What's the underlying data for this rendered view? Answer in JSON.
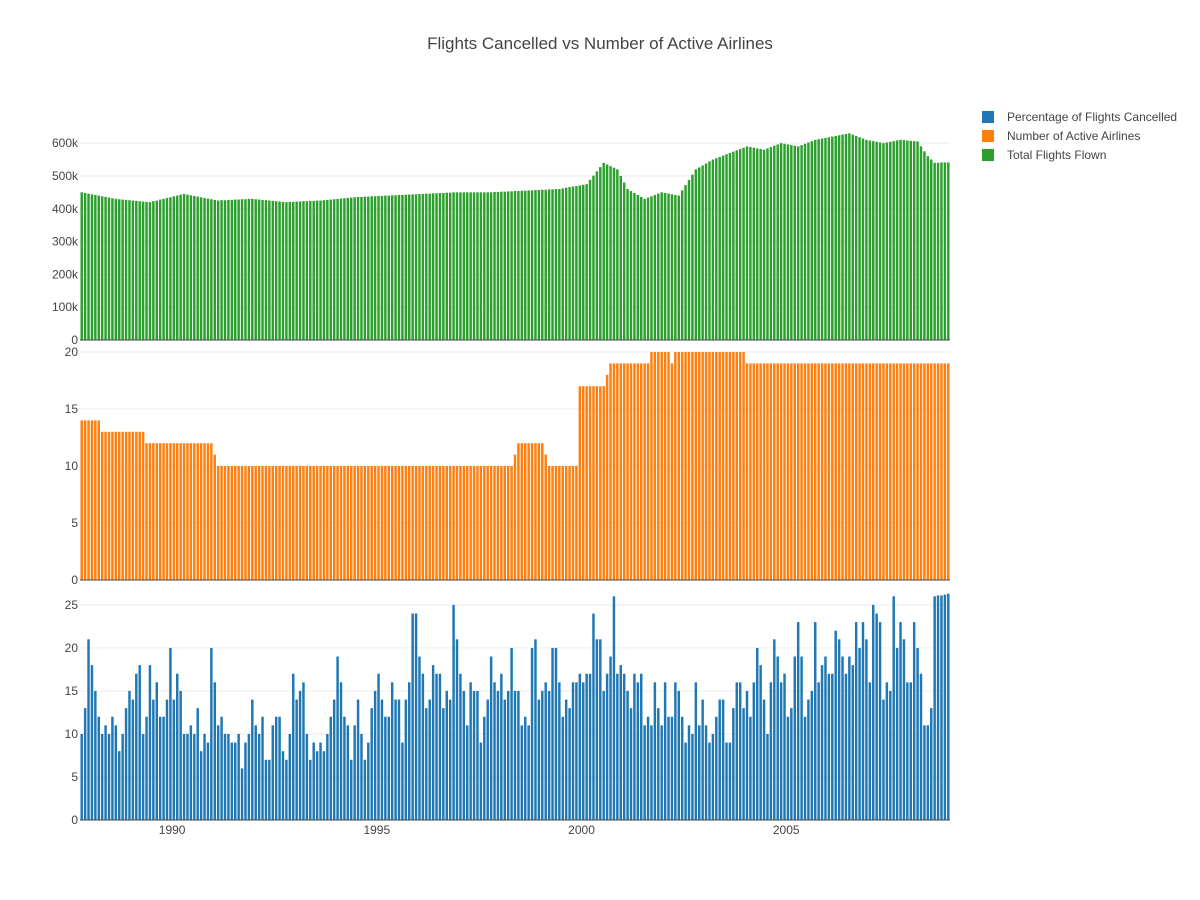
{
  "chart_data": {
    "type": "bar",
    "title": "Flights Cancelled vs Number of Active Airlines",
    "xlabel": "",
    "x_start": "1987-10",
    "x_end": "2008-12",
    "x_frequency": "monthly",
    "x_ticks": [
      "1990",
      "1995",
      "2000",
      "2005"
    ],
    "legend_position": "top-right",
    "grid": true,
    "series": [
      {
        "name": "Percentage of Flights Cancelled",
        "color": "#1f77b4",
        "ylim": [
          0,
          26.5
        ],
        "yticks": [
          "0",
          "5",
          "10",
          "15",
          "20",
          "25"
        ],
        "anchors": [
          [
            0,
            10
          ],
          [
            1,
            13
          ],
          [
            2,
            21
          ],
          [
            3,
            18
          ],
          [
            4,
            15
          ],
          [
            5,
            12
          ],
          [
            6,
            10
          ],
          [
            7,
            11
          ],
          [
            8,
            10
          ],
          [
            9,
            12
          ],
          [
            10,
            11
          ],
          [
            11,
            8
          ],
          [
            12,
            10
          ],
          [
            13,
            13
          ],
          [
            14,
            15
          ],
          [
            15,
            14
          ],
          [
            16,
            17
          ],
          [
            17,
            18
          ],
          [
            18,
            10
          ],
          [
            19,
            12
          ],
          [
            20,
            18
          ],
          [
            21,
            14
          ],
          [
            22,
            16
          ],
          [
            23,
            12
          ],
          [
            24,
            12
          ],
          [
            25,
            14
          ],
          [
            26,
            20
          ],
          [
            27,
            14
          ],
          [
            28,
            17
          ],
          [
            29,
            15
          ],
          [
            30,
            10
          ],
          [
            31,
            10
          ],
          [
            32,
            11
          ],
          [
            33,
            10
          ],
          [
            34,
            13
          ],
          [
            35,
            8
          ],
          [
            36,
            10
          ],
          [
            37,
            9
          ],
          [
            38,
            20
          ],
          [
            39,
            16
          ],
          [
            40,
            11
          ],
          [
            41,
            12
          ],
          [
            42,
            10
          ],
          [
            43,
            10
          ],
          [
            44,
            9
          ],
          [
            45,
            9
          ],
          [
            46,
            10
          ],
          [
            47,
            6
          ],
          [
            48,
            9
          ],
          [
            49,
            10
          ],
          [
            50,
            14
          ],
          [
            51,
            11
          ],
          [
            52,
            10
          ],
          [
            53,
            12
          ],
          [
            54,
            7
          ],
          [
            55,
            7
          ],
          [
            56,
            11
          ],
          [
            57,
            12
          ],
          [
            58,
            12
          ],
          [
            59,
            8
          ],
          [
            60,
            7
          ],
          [
            61,
            10
          ],
          [
            62,
            17
          ],
          [
            63,
            14
          ],
          [
            64,
            15
          ],
          [
            65,
            16
          ],
          [
            66,
            10
          ],
          [
            67,
            7
          ],
          [
            68,
            9
          ],
          [
            69,
            8
          ],
          [
            70,
            9
          ],
          [
            71,
            8
          ],
          [
            72,
            10
          ],
          [
            73,
            12
          ],
          [
            74,
            14
          ],
          [
            75,
            19
          ],
          [
            76,
            16
          ],
          [
            77,
            12
          ],
          [
            78,
            11
          ],
          [
            79,
            7
          ],
          [
            80,
            11
          ],
          [
            81,
            14
          ],
          [
            82,
            10
          ],
          [
            83,
            7
          ],
          [
            84,
            9
          ],
          [
            85,
            13
          ],
          [
            86,
            15
          ],
          [
            87,
            17
          ],
          [
            88,
            14
          ],
          [
            89,
            12
          ],
          [
            90,
            12
          ],
          [
            91,
            16
          ],
          [
            92,
            14
          ],
          [
            93,
            14
          ],
          [
            94,
            9
          ],
          [
            95,
            14
          ],
          [
            96,
            16
          ],
          [
            97,
            24
          ],
          [
            98,
            24
          ],
          [
            99,
            19
          ],
          [
            100,
            17
          ],
          [
            101,
            13
          ],
          [
            102,
            14
          ],
          [
            103,
            18
          ],
          [
            104,
            17
          ],
          [
            105,
            17
          ],
          [
            106,
            13
          ],
          [
            107,
            15
          ],
          [
            108,
            14
          ],
          [
            109,
            25
          ],
          [
            110,
            21
          ],
          [
            111,
            17
          ],
          [
            112,
            15
          ],
          [
            113,
            11
          ],
          [
            114,
            16
          ],
          [
            115,
            15
          ],
          [
            116,
            15
          ],
          [
            117,
            9
          ],
          [
            118,
            12
          ],
          [
            119,
            14
          ],
          [
            120,
            19
          ],
          [
            121,
            16
          ],
          [
            122,
            15
          ],
          [
            123,
            17
          ],
          [
            124,
            14
          ],
          [
            125,
            15
          ],
          [
            126,
            20
          ],
          [
            127,
            15
          ],
          [
            128,
            15
          ],
          [
            129,
            11
          ],
          [
            130,
            12
          ],
          [
            131,
            11
          ],
          [
            132,
            20
          ],
          [
            133,
            21
          ],
          [
            134,
            14
          ],
          [
            135,
            15
          ],
          [
            136,
            16
          ],
          [
            137,
            15
          ],
          [
            138,
            20
          ],
          [
            139,
            20
          ],
          [
            140,
            16
          ],
          [
            141,
            12
          ],
          [
            142,
            14
          ],
          [
            143,
            13
          ],
          [
            144,
            16
          ],
          [
            145,
            16
          ],
          [
            146,
            17
          ],
          [
            147,
            16
          ],
          [
            148,
            17
          ],
          [
            149,
            17
          ],
          [
            150,
            24
          ],
          [
            151,
            21
          ],
          [
            152,
            21
          ],
          [
            153,
            15
          ],
          [
            154,
            17
          ],
          [
            155,
            19
          ],
          [
            156,
            26
          ],
          [
            157,
            17
          ],
          [
            158,
            18
          ],
          [
            159,
            17
          ],
          [
            160,
            15
          ],
          [
            161,
            13
          ],
          [
            162,
            17
          ],
          [
            163,
            16
          ],
          [
            164,
            17
          ],
          [
            165,
            11
          ],
          [
            166,
            12
          ],
          [
            167,
            11
          ],
          [
            168,
            16
          ],
          [
            169,
            13
          ],
          [
            170,
            11
          ],
          [
            171,
            16
          ],
          [
            172,
            12
          ],
          [
            173,
            12
          ],
          [
            174,
            16
          ],
          [
            175,
            15
          ],
          [
            176,
            12
          ],
          [
            177,
            9
          ],
          [
            178,
            11
          ],
          [
            179,
            10
          ],
          [
            180,
            16
          ],
          [
            181,
            11
          ],
          [
            182,
            14
          ],
          [
            183,
            11
          ],
          [
            184,
            9
          ],
          [
            185,
            10
          ],
          [
            186,
            12
          ],
          [
            187,
            14
          ],
          [
            188,
            14
          ],
          [
            189,
            9
          ],
          [
            190,
            9
          ],
          [
            191,
            13
          ],
          [
            192,
            16
          ],
          [
            193,
            16
          ],
          [
            194,
            13
          ],
          [
            195,
            15
          ],
          [
            196,
            12
          ],
          [
            197,
            16
          ],
          [
            198,
            20
          ],
          [
            199,
            18
          ],
          [
            200,
            14
          ],
          [
            201,
            10
          ],
          [
            202,
            16
          ],
          [
            203,
            21
          ],
          [
            204,
            19
          ],
          [
            205,
            16
          ],
          [
            206,
            17
          ],
          [
            207,
            12
          ],
          [
            208,
            13
          ],
          [
            209,
            19
          ],
          [
            210,
            23
          ],
          [
            211,
            19
          ],
          [
            212,
            12
          ],
          [
            213,
            14
          ],
          [
            214,
            15
          ],
          [
            215,
            23
          ],
          [
            216,
            16
          ],
          [
            217,
            18
          ],
          [
            218,
            19
          ],
          [
            219,
            17
          ],
          [
            220,
            17
          ],
          [
            221,
            22
          ],
          [
            222,
            21
          ],
          [
            223,
            19
          ],
          [
            224,
            17
          ],
          [
            225,
            19
          ],
          [
            226,
            18
          ],
          [
            227,
            23
          ],
          [
            228,
            20
          ],
          [
            229,
            23
          ],
          [
            230,
            21
          ],
          [
            231,
            16
          ],
          [
            232,
            25
          ],
          [
            233,
            24
          ],
          [
            234,
            23
          ],
          [
            235,
            14
          ],
          [
            236,
            16
          ],
          [
            237,
            15
          ],
          [
            238,
            26
          ],
          [
            239,
            20
          ],
          [
            240,
            23
          ],
          [
            241,
            21
          ],
          [
            242,
            16
          ],
          [
            243,
            16
          ],
          [
            244,
            23
          ],
          [
            245,
            20
          ],
          [
            246,
            17
          ],
          [
            247,
            11
          ],
          [
            248,
            11
          ],
          [
            249,
            13
          ],
          [
            250,
            26
          ]
        ]
      },
      {
        "name": "Number of Active Airlines",
        "color": "#ff7f0e",
        "ylim": [
          0,
          20
        ],
        "yticks": [
          "0",
          "5",
          "10",
          "15",
          "20"
        ],
        "anchors": [
          [
            0,
            14
          ],
          [
            5,
            14
          ],
          [
            6,
            13
          ],
          [
            18,
            13
          ],
          [
            19,
            12
          ],
          [
            38,
            12
          ],
          [
            39,
            11
          ],
          [
            40,
            10
          ],
          [
            126,
            10
          ],
          [
            127,
            11
          ],
          [
            128,
            12
          ],
          [
            135,
            12
          ],
          [
            136,
            11
          ],
          [
            137,
            10
          ],
          [
            145,
            10
          ],
          [
            146,
            17
          ],
          [
            153,
            17
          ],
          [
            154,
            18
          ],
          [
            155,
            19
          ],
          [
            166,
            19
          ],
          [
            167,
            20
          ],
          [
            172,
            20
          ],
          [
            173,
            19
          ],
          [
            174,
            20
          ],
          [
            194,
            20
          ],
          [
            195,
            19
          ],
          [
            203,
            19
          ],
          [
            250,
            19
          ]
        ]
      },
      {
        "name": "Total Flights Flown",
        "color": "#2ca02c",
        "ylim": [
          0,
          640000
        ],
        "yticks": [
          "0",
          "100k",
          "200k",
          "300k",
          "400k",
          "500k",
          "600k"
        ],
        "anchors": [
          [
            0,
            450000
          ],
          [
            10,
            430000
          ],
          [
            20,
            420000
          ],
          [
            30,
            445000
          ],
          [
            40,
            425000
          ],
          [
            50,
            430000
          ],
          [
            60,
            420000
          ],
          [
            70,
            425000
          ],
          [
            80,
            435000
          ],
          [
            90,
            440000
          ],
          [
            100,
            445000
          ],
          [
            110,
            450000
          ],
          [
            120,
            450000
          ],
          [
            130,
            455000
          ],
          [
            140,
            460000
          ],
          [
            148,
            475000
          ],
          [
            153,
            540000
          ],
          [
            157,
            520000
          ],
          [
            160,
            460000
          ],
          [
            165,
            430000
          ],
          [
            170,
            450000
          ],
          [
            175,
            440000
          ],
          [
            180,
            520000
          ],
          [
            185,
            550000
          ],
          [
            190,
            570000
          ],
          [
            195,
            590000
          ],
          [
            200,
            580000
          ],
          [
            205,
            600000
          ],
          [
            210,
            590000
          ],
          [
            215,
            610000
          ],
          [
            220,
            620000
          ],
          [
            225,
            630000
          ],
          [
            230,
            610000
          ],
          [
            235,
            600000
          ],
          [
            240,
            610000
          ],
          [
            245,
            605000
          ],
          [
            248,
            560000
          ],
          [
            250,
            540000
          ]
        ]
      }
    ]
  }
}
